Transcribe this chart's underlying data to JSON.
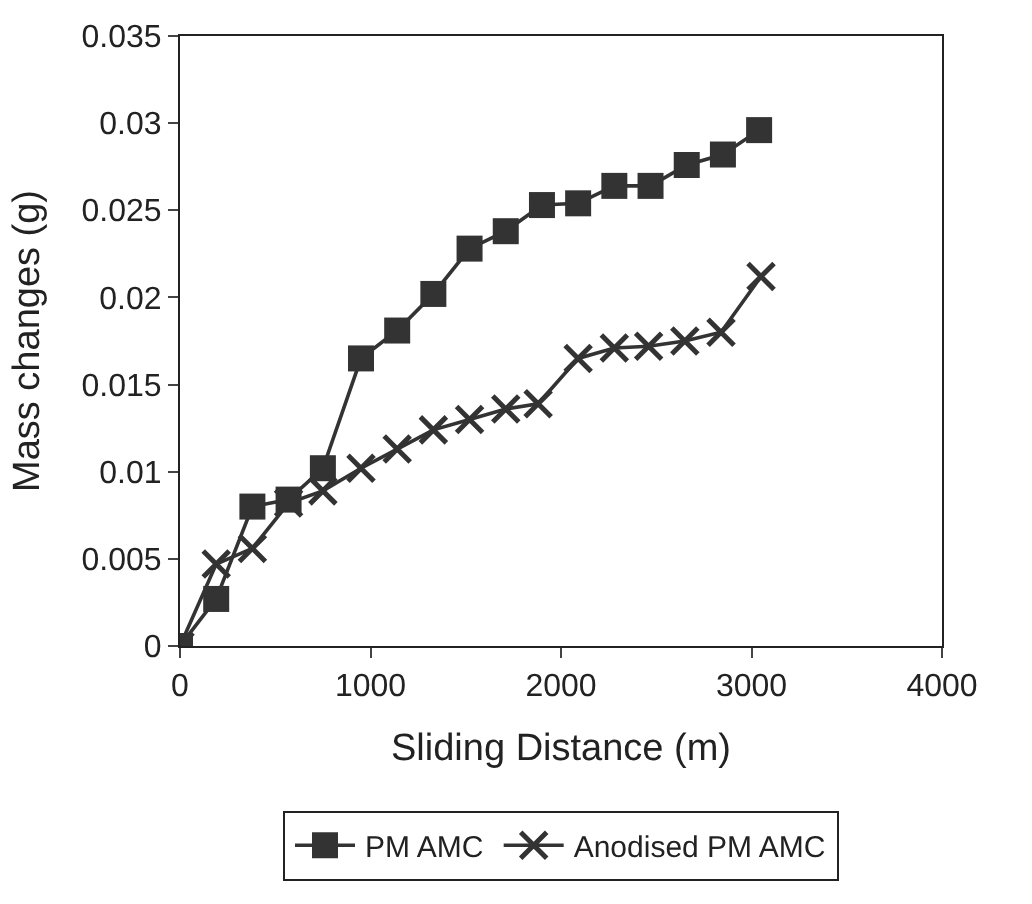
{
  "chart_data": {
    "type": "line",
    "xlabel": "Sliding Distance (m)",
    "ylabel": "Mass changes (g)",
    "xlim": [
      0,
      4000
    ],
    "xticks": [
      0,
      1000,
      2000,
      3000,
      4000
    ],
    "ylim": [
      0,
      0.035
    ],
    "yticks": [
      0,
      0.005,
      0.01,
      0.015,
      0.02,
      0.025,
      0.03,
      0.035
    ],
    "legend": "bottom",
    "series": [
      {
        "name": "PM AMC",
        "color": "#333333",
        "marker": "square",
        "x": [
          0,
          190,
          380,
          570,
          750,
          950,
          1140,
          1330,
          1520,
          1710,
          1900,
          2090,
          2280,
          2470,
          2660,
          2850,
          3040
        ],
        "values": [
          0,
          0.0027,
          0.008,
          0.0084,
          0.0102,
          0.0165,
          0.0181,
          0.0202,
          0.0228,
          0.0238,
          0.0253,
          0.0254,
          0.0264,
          0.0264,
          0.0276,
          0.0282,
          0.0296
        ]
      },
      {
        "name": "Anodised PM AMC",
        "color": "#333333",
        "marker": "cross",
        "x": [
          0,
          190,
          380,
          570,
          750,
          950,
          1140,
          1330,
          1520,
          1710,
          1880,
          2090,
          2280,
          2460,
          2650,
          2840,
          3050
        ],
        "values": [
          0,
          0.0047,
          0.0056,
          0.0082,
          0.0089,
          0.0102,
          0.0113,
          0.0124,
          0.013,
          0.0136,
          0.0139,
          0.0165,
          0.0171,
          0.0172,
          0.0175,
          0.018,
          0.0212
        ]
      }
    ]
  }
}
